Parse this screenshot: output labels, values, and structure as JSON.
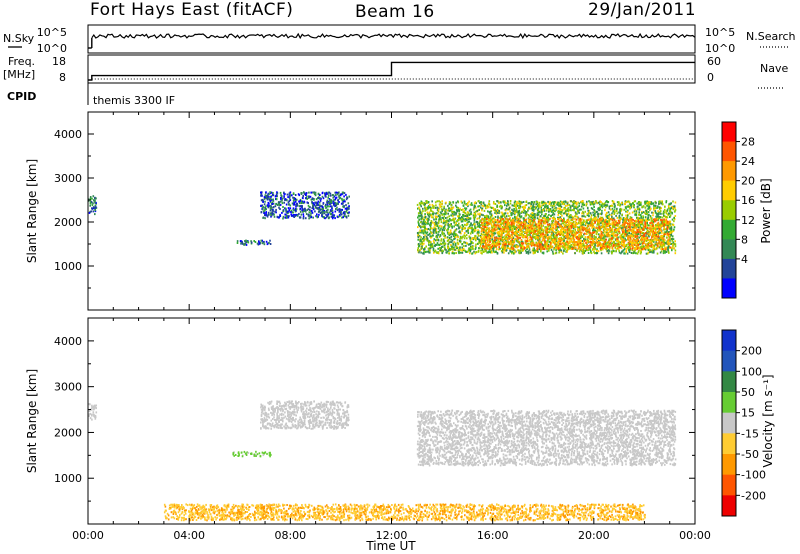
{
  "header": {
    "station": "Fort Hays East (fitACF)",
    "beam": "Beam 16",
    "date": "29/Jan/2011"
  },
  "aux_panels": {
    "nsky": {
      "label": "N.Sky",
      "ticks": [
        "10^5",
        "10^0"
      ]
    },
    "nsearch": {
      "label": "N.Search",
      "ticks": [
        "10^5",
        "10^0"
      ]
    },
    "freq": {
      "label_top": "Freq.",
      "label_unit": "[MHz]",
      "ticks": [
        "18",
        "8"
      ]
    },
    "nave": {
      "label": "Nave",
      "ticks": [
        "60",
        "0"
      ]
    },
    "cpid": {
      "label": "CPID",
      "program": "themis 3300 IF"
    }
  },
  "panels": {
    "power": {
      "ylabel": "Slant Range [km]",
      "colorbar_label": "Power [dB]",
      "colorbar_ticks": [
        "28",
        "24",
        "20",
        "16",
        "12",
        "8",
        "4"
      ],
      "colorbar_colors": [
        "#ff0000",
        "#ff5500",
        "#ff9900",
        "#ffcc00",
        "#99cc00",
        "#33aa33",
        "#338855",
        "#224499",
        "#0000ff"
      ]
    },
    "velocity": {
      "ylabel": "Slant Range [km]",
      "colorbar_label": "Velocity [m s⁻¹]",
      "colorbar_ticks": [
        "200",
        "100",
        "50",
        "15",
        "-15",
        "-50",
        "-100",
        "-200"
      ],
      "colorbar_colors": [
        "#1133cc",
        "#2255bb",
        "#338844",
        "#66cc33",
        "#c8c8c8",
        "#ffcc33",
        "#ff9900",
        "#ff5500",
        "#ee0000"
      ]
    }
  },
  "xaxis": {
    "title": "Time UT",
    "ticks": [
      "00:00",
      "04:00",
      "08:00",
      "12:00",
      "16:00",
      "20:00",
      "00:00"
    ]
  },
  "chart_data": [
    {
      "type": "heatmap",
      "title": "Power",
      "ylabel": "Slant Range [km]",
      "colorbar": "Power [dB]",
      "xlabel": "Time UT",
      "x_range_hours": [
        0,
        24
      ],
      "ylim": [
        0,
        4500
      ],
      "yticks": [
        1000,
        2000,
        3000,
        4000
      ],
      "clim": [
        0,
        32
      ],
      "regions": [
        {
          "t0": 0.0,
          "t1": 0.3,
          "r0": 2200,
          "r1": 2650,
          "value": 8
        },
        {
          "t0": 5.7,
          "t1": 7.2,
          "r0": 1500,
          "r1": 1600,
          "value": 6
        },
        {
          "t0": 6.8,
          "t1": 10.3,
          "r0": 2100,
          "r1": 2700,
          "value": 6
        },
        {
          "t0": 13.0,
          "t1": 23.2,
          "r0": 1300,
          "r1": 2500,
          "value": 14
        },
        {
          "t0": 15.5,
          "t1": 23.0,
          "r0": 1400,
          "r1": 2100,
          "value": 22
        }
      ]
    },
    {
      "type": "heatmap",
      "title": "Velocity",
      "ylabel": "Slant Range [km]",
      "colorbar": "Velocity [m s⁻¹]",
      "xlabel": "Time UT",
      "x_range_hours": [
        0,
        24
      ],
      "ylim": [
        0,
        4500
      ],
      "yticks": [
        1000,
        2000,
        3000,
        4000
      ],
      "clim": [
        -200,
        200
      ],
      "regions": [
        {
          "t0": 0.0,
          "t1": 0.3,
          "r0": 2300,
          "r1": 2650,
          "value": 0
        },
        {
          "t0": 5.7,
          "t1": 7.2,
          "r0": 1500,
          "r1": 1600,
          "value": 40
        },
        {
          "t0": 6.8,
          "t1": 10.3,
          "r0": 2100,
          "r1": 2700,
          "value": 0
        },
        {
          "t0": 13.0,
          "t1": 23.2,
          "r0": 1300,
          "r1": 2500,
          "value": 0
        },
        {
          "t0": 3.0,
          "t1": 22.0,
          "r0": 100,
          "r1": 450,
          "value": -60
        }
      ]
    },
    {
      "type": "line",
      "title": "Freq.",
      "ylabel": "[MHz]",
      "ylim": [
        8,
        18
      ],
      "x": [
        0,
        0.15,
        12.0,
        24.0
      ],
      "y": [
        8,
        10,
        16,
        16
      ]
    }
  ]
}
